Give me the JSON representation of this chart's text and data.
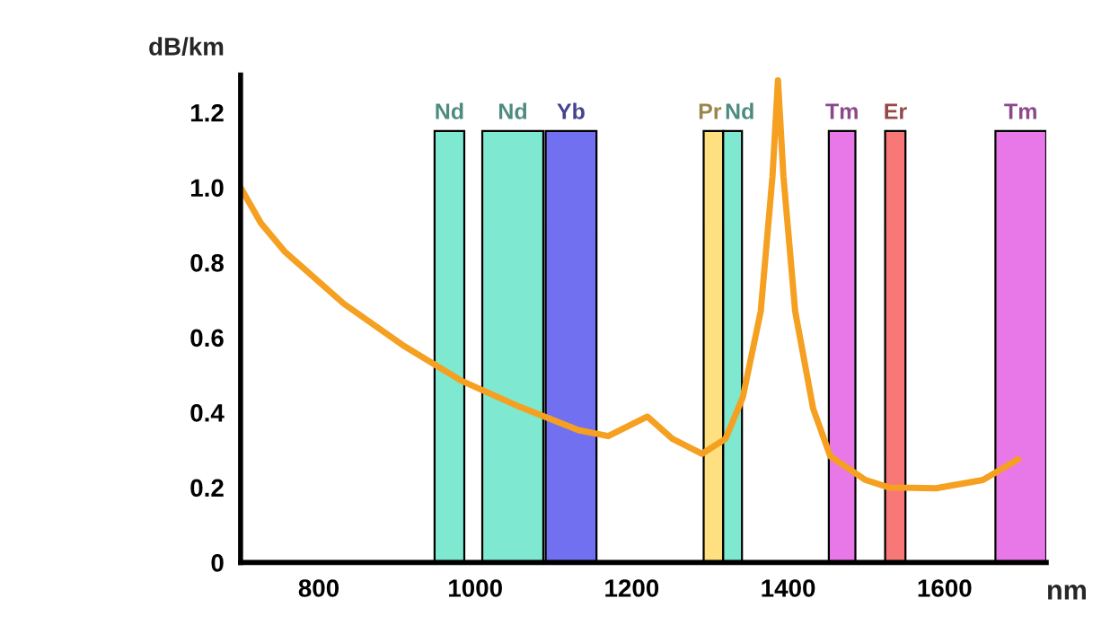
{
  "chart_data": {
    "type": "line",
    "xlabel": "nm",
    "ylabel": "dB/km",
    "x": [
      700,
      726,
      756,
      832,
      907,
      982,
      1057,
      1132,
      1170,
      1220,
      1252,
      1290,
      1320,
      1342,
      1365,
      1380,
      1387,
      1394,
      1409,
      1432,
      1454,
      1499,
      1529,
      1589,
      1649,
      1694
    ],
    "series": [
      {
        "color": "#f5a020",
        "values": [
          1.0,
          0.905,
          0.83,
          0.69,
          0.58,
          0.485,
          0.415,
          0.353,
          0.337,
          0.389,
          0.33,
          0.29,
          0.33,
          0.44,
          0.67,
          1.03,
          1.286,
          1.03,
          0.67,
          0.41,
          0.283,
          0.22,
          0.2,
          0.198,
          0.22,
          0.275
        ]
      }
    ],
    "xlim": [
      700,
      1730
    ],
    "xticks": [
      800,
      1000,
      1200,
      1400,
      1600
    ],
    "ylim": [
      0,
      1.3
    ],
    "yticks": [
      {
        "value": 0,
        "label": "0"
      },
      0.2,
      0.4,
      0.6,
      0.8,
      {
        "value": 1.0,
        "label": "1.0"
      },
      1.2
    ],
    "bands": [
      {
        "axis": "x",
        "from": 948,
        "to": 986,
        "label": "Nd",
        "color": "#7ee8d0"
      },
      {
        "axis": "x",
        "from": 1009,
        "to": 1087,
        "label": "Nd",
        "color": "#7ee8d0"
      },
      {
        "axis": "x",
        "from": 1090,
        "to": 1155,
        "label": "Yb",
        "color": "#7070f0"
      },
      {
        "axis": "x",
        "from": 1292,
        "to": 1317,
        "label": "Pr",
        "color": "#ffe080"
      },
      {
        "axis": "x",
        "from": 1317,
        "to": 1341,
        "label": "Nd",
        "color": "#7ee8d0"
      },
      {
        "axis": "x",
        "from": 1452,
        "to": 1486,
        "label": "Tm",
        "color": "#e878e8"
      },
      {
        "axis": "x",
        "from": 1524,
        "to": 1550,
        "label": "Er",
        "color": "#f87878"
      },
      {
        "axis": "x",
        "from": 1665,
        "to": 1730,
        "label": "Tm",
        "color": "#e878e8"
      }
    ],
    "grid": false,
    "legend": false
  }
}
